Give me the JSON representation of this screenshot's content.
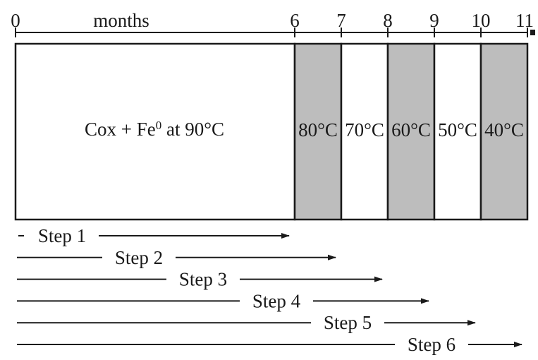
{
  "axis": {
    "unit_label": "months",
    "ticks": [
      "0",
      "6",
      "7",
      "8",
      "9",
      "10",
      "11"
    ],
    "range": [
      0,
      11
    ]
  },
  "periods": [
    {
      "start": 0,
      "end": 6,
      "label_main": "Cox + Fe",
      "label_sup": "0",
      "label_tail": " at 90°C",
      "shaded": false
    },
    {
      "start": 6,
      "end": 7,
      "label": "80°C",
      "shaded": true
    },
    {
      "start": 7,
      "end": 8,
      "label": "70°C",
      "shaded": false
    },
    {
      "start": 8,
      "end": 9,
      "label": "60°C",
      "shaded": true
    },
    {
      "start": 9,
      "end": 10,
      "label": "50°C",
      "shaded": false
    },
    {
      "start": 10,
      "end": 11,
      "label": "40°C",
      "shaded": true
    }
  ],
  "steps": [
    {
      "label": "Step 1",
      "start": 0,
      "end": 6
    },
    {
      "label": "Step 2",
      "start": 0,
      "end": 7
    },
    {
      "label": "Step 3",
      "start": 0,
      "end": 8
    },
    {
      "label": "Step 4",
      "start": 0,
      "end": 9
    },
    {
      "label": "Step 5",
      "start": 0,
      "end": 10
    },
    {
      "label": "Step 6",
      "start": 0,
      "end": 11
    }
  ],
  "colors": {
    "shaded": "#bdbdbd",
    "unshaded": "#ffffff",
    "ink": "#1a1a1a"
  }
}
